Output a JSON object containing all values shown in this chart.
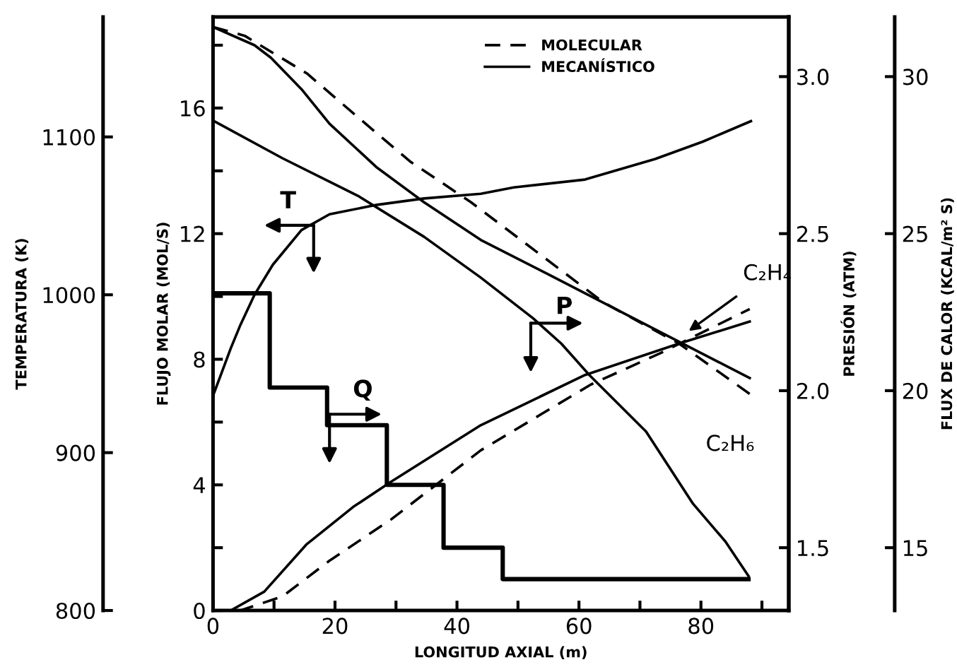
{
  "chart_data": [
    {
      "type": "line",
      "xlabel": "LONGITUD AXIAL (m)",
      "ylabel": "FLUJO MOLAR (MOL/S)",
      "y2label": "PRESIÓN (ATM)",
      "y3label": "FLUX DE CALOR (KCAL/m² S)",
      "xlim": [
        0,
        94.4
      ],
      "xticks": [
        0,
        {
          "value": 10,
          "label": null
        },
        20,
        {
          "value": 30,
          "label": null
        },
        40,
        {
          "value": 50,
          "label": null
        },
        60,
        {
          "value": 70,
          "label": null
        },
        80,
        {
          "value": 90,
          "label": null
        }
      ],
      "ylim": [
        0,
        18.9
      ],
      "yticks": [
        0,
        {
          "value": 2,
          "label": null
        },
        4,
        {
          "value": 6,
          "label": null
        },
        8,
        {
          "value": 10,
          "label": null
        },
        12,
        {
          "value": 14,
          "label": null
        },
        16,
        {
          "value": 18,
          "label": null
        }
      ],
      "y2lim": [
        1.3,
        3.19
      ],
      "y2ticks": [
        {
          "value": 1.5,
          "label": "1.5"
        },
        {
          "value": 2,
          "label": "2.0"
        },
        {
          "value": 2.5,
          "label": "2.5"
        },
        {
          "value": 3,
          "label": "3.0"
        }
      ],
      "y3lim": [
        13.0,
        31.9
      ],
      "y3ticks": [
        15,
        20,
        25,
        30
      ],
      "grid": false,
      "legend": "top",
      "marker": "none",
      "series": [
        {
          "name": "MOLECULAR",
          "color": "#000000",
          "line_style": "dashed",
          "x": [
            0,
            5.2,
            15.4,
            23.8,
            32.3,
            42.3,
            53.2,
            64.1,
            76.4,
            88.7
          ],
          "values": [
            18.58,
            18.3,
            17.1,
            15.7,
            14.3,
            13.0,
            11.4,
            9.8,
            8.5,
            6.8
          ]
        },
        {
          "name": "MECANÍSTICO",
          "color": "#000000",
          "line_style": "solid",
          "x": [
            0,
            6.8,
            9.5,
            14.5,
            19.1,
            26.9,
            34.6,
            43.9,
            55,
            65,
            75,
            88
          ],
          "values": [
            18.58,
            18.0,
            17.6,
            16.6,
            15.5,
            14.1,
            13.0,
            11.8,
            10.7,
            9.7,
            8.7,
            7.4
          ]
        },
        {
          "color": "#000000",
          "line_style": "dashed",
          "x": [
            0,
            4.5,
            11.4,
            19.2,
            29.2,
            43.9,
            62,
            73.4,
            88
          ],
          "values": [
            0,
            0,
            0.45,
            1.6,
            2.9,
            5.1,
            7.2,
            8.2,
            9.6
          ]
        },
        {
          "color": "#000000",
          "line_style": "solid",
          "x": [
            0,
            2.9,
            8.4,
            15.3,
            23,
            29.2,
            43.9,
            61,
            76.4,
            88
          ],
          "values": [
            0,
            0,
            0.6,
            2.1,
            3.3,
            4.1,
            5.9,
            7.5,
            8.5,
            9.2
          ]
        },
        {
          "color": "#000000",
          "line_style": "solid",
          "axis": "y2",
          "x": [
            0,
            11.4,
            23.8,
            34.6,
            43.9,
            52.5,
            57.1,
            61.7,
            71.0,
            78.7,
            84.0,
            87.8
          ],
          "values": [
            2.86,
            2.74,
            2.62,
            2.49,
            2.36,
            2.23,
            2.15,
            2.05,
            1.87,
            1.64,
            1.52,
            1.41
          ]
        },
        {
          "type": "step",
          "color": "#000000",
          "line_style": "solid",
          "axis": "y3",
          "x": [
            0,
            9.3,
            18.7,
            28.5,
            37.8,
            47.5,
            87.8
          ],
          "values": [
            23.1,
            20.1,
            18.9,
            17.0,
            15.0,
            14.0,
            14.0
          ]
        }
      ],
      "annotations": [
        {
          "text": "P",
          "x": 52.1,
          "y": 9.15
        },
        {
          "text": "Q",
          "x": 19.1,
          "y": 6.25
        },
        {
          "text": "C₂H₄",
          "x": 78,
          "y": 8.9
        },
        {
          "text": "C₂H₆",
          "x": 88,
          "y": 6.9
        }
      ]
    },
    {
      "type": "line",
      "ylabel": "TEMPERATURA (K)",
      "tick_labels": "y",
      "xlim": [
        0,
        94.4
      ],
      "ylim": [
        800,
        1176
      ],
      "yticks": [
        800,
        900,
        1000,
        1100
      ],
      "marker": "none",
      "series": [
        {
          "color": "#000000",
          "line_style": "solid",
          "x": [
            0,
            2.9,
            4.5,
            6.8,
            9.8,
            14.5,
            19.1,
            26.9,
            34.6,
            43.9,
            49.3,
            61,
            72.5,
            80.3,
            88.2
          ],
          "values": [
            936,
            966,
            981,
            1000,
            1019,
            1041,
            1051,
            1057,
            1061,
            1064,
            1068,
            1073,
            1086,
            1097,
            1110
          ]
        }
      ],
      "annotations": [
        {
          "text": "T",
          "x": 16.5,
          "y": 1044
        }
      ]
    }
  ]
}
